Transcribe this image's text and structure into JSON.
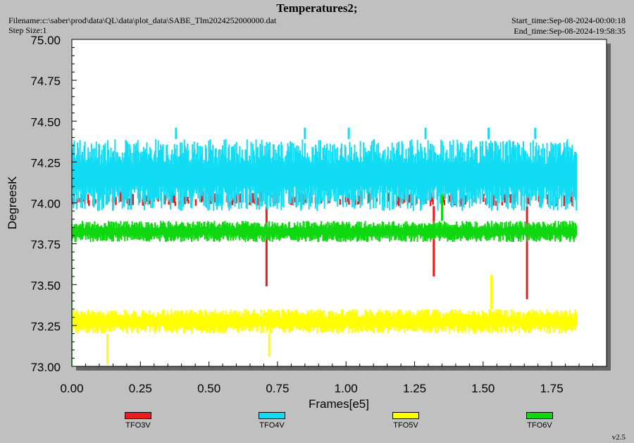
{
  "header": {
    "title": "Temperatures2;",
    "filename": "Filename:c:\\saber\\prod\\data\\QL\\data\\plot_data\\SABE_Tlm2024252000000.dat",
    "step_size": "Step Size:1",
    "start_time": "Start_time:Sep-08-2024-00:00:18",
    "end_time": "End_time:Sep-08-2024-19:58:35"
  },
  "version": "v2.5",
  "chart_data": {
    "type": "line",
    "title": "Temperatures2;",
    "xlabel": "Frames[e5]",
    "ylabel": "DegreesK",
    "xlim": [
      0,
      1.95
    ],
    "ylim": [
      73.0,
      75.0
    ],
    "xticks": [
      "0.00",
      "0.25",
      "0.50",
      "0.75",
      "1.00",
      "1.25",
      "1.50",
      "1.75"
    ],
    "yticks": [
      "73.00",
      "73.25",
      "73.50",
      "73.75",
      "74.00",
      "74.25",
      "74.50",
      "74.75",
      "75.00"
    ],
    "grid": false,
    "legend_position": "bottom",
    "x_end": 1.84,
    "series": [
      {
        "name": "TFO3V",
        "color": "#ee1c1c",
        "base_low": 73.98,
        "base_high": 74.08,
        "spikes": [
          {
            "x": 0.71,
            "y": 73.49
          },
          {
            "x": 1.32,
            "y": 73.55
          },
          {
            "x": 1.66,
            "y": 73.41
          }
        ]
      },
      {
        "name": "TFO4V",
        "color": "#12dcf4",
        "base_low": 73.95,
        "base_high": 74.39,
        "spikes": [
          {
            "x": 0.38,
            "y": 74.46
          },
          {
            "x": 0.85,
            "y": 74.46
          },
          {
            "x": 1.01,
            "y": 74.46
          },
          {
            "x": 1.29,
            "y": 74.46
          },
          {
            "x": 1.52,
            "y": 74.46
          },
          {
            "x": 1.69,
            "y": 74.46
          }
        ]
      },
      {
        "name": "TFO5V",
        "color": "#ffff00",
        "base_low": 73.2,
        "base_high": 73.35,
        "spikes": [
          {
            "x": 0.13,
            "y": 73.01
          },
          {
            "x": 0.72,
            "y": 73.06
          },
          {
            "x": 1.53,
            "y": 73.56
          }
        ]
      },
      {
        "name": "TFO6V",
        "color": "#10d810",
        "base_low": 73.76,
        "base_high": 73.89,
        "spikes": [
          {
            "x": 1.35,
            "y": 74.05
          }
        ]
      }
    ]
  }
}
